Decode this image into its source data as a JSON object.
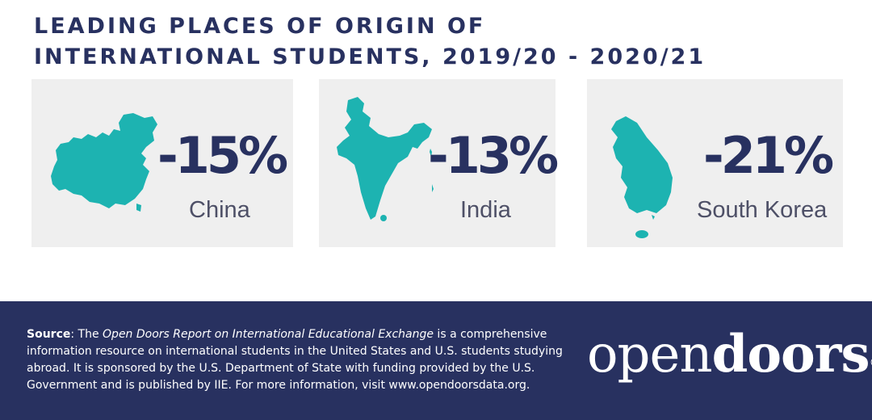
{
  "header": {
    "title_line1": "LEADING PLACES OF ORIGIN OF",
    "title_line2": "INTERNATIONAL STUDENTS, 2019/20 - 2020/21"
  },
  "chart_data": {
    "type": "table",
    "title": "LEADING PLACES OF ORIGIN OF INTERNATIONAL STUDENTS, 2019/20 - 2020/21",
    "categories": [
      "China",
      "India",
      "South Korea"
    ],
    "values": [
      -15,
      -13,
      -21
    ],
    "value_labels": [
      "-15%",
      "-13%",
      "-21%"
    ],
    "unit": "%"
  },
  "footer": {
    "source_label": "Source",
    "source_prefix": ": The ",
    "source_report": "Open Doors Report on International Educational Exchange",
    "source_rest": " is a comprehensive information resource on international students in the United States and U.S. students studying abroad. It is sponsored by the U.S. Department of State with funding provided by the U.S. Government and is published by IIE. For more information, visit www.opendoorsdata.org.",
    "logo_light": "open",
    "logo_bold": "doors",
    "logo_mark": "®"
  },
  "colors": {
    "navy": "#283160",
    "teal": "#1db3b1",
    "card_bg": "#efefef",
    "country_text": "#4e5067"
  }
}
